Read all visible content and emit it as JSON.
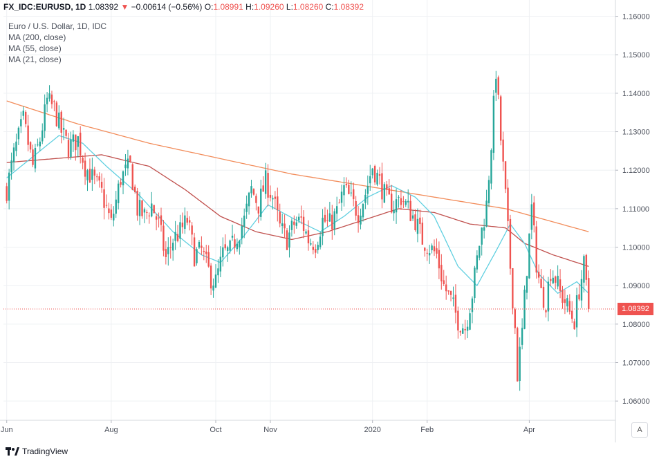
{
  "header": {
    "symbol": "FX_IDC:EURUSD, 1D",
    "last": "1.08392",
    "change_arrow": "▼",
    "change": "−0.00614 (−0.56%)",
    "open_label": "O:",
    "open": "1.08991",
    "high_label": "H:",
    "high": "1.09260",
    "low_label": "L:",
    "low": "1.08260",
    "close_label": "C:",
    "close": "1.08392"
  },
  "legend": [
    {
      "label": "Euro / U.S. Dollar, 1D, IDC"
    },
    {
      "label": "MA (200, close)"
    },
    {
      "label": "MA (55, close)"
    },
    {
      "label": "MA (21, close)"
    }
  ],
  "price_tag": "1.08392",
  "auto_button": "A",
  "branding": "TradingView",
  "colors": {
    "up": "#26a69a",
    "down": "#ef5350",
    "ma200": "#f28c5a",
    "ma55": "#c0504d",
    "ma21": "#5fcfe0",
    "grid": "#eef0f3",
    "axis_text": "#4a4f5a"
  },
  "chart_data": {
    "type": "candlestick",
    "y_axis": {
      "ticks": [
        "1.16000",
        "1.15000",
        "1.14000",
        "1.13000",
        "1.12000",
        "1.11000",
        "1.10000",
        "1.09000",
        "1.08000",
        "1.07000",
        "1.06000"
      ],
      "ylim": [
        1.055,
        1.161
      ]
    },
    "x_axis": {
      "ticks": [
        {
          "label": "Jun",
          "index": 0
        },
        {
          "label": "Aug",
          "index": 44
        },
        {
          "label": "Oct",
          "index": 88
        },
        {
          "label": "Nov",
          "index": 111
        },
        {
          "label": "2020",
          "index": 154
        },
        {
          "label": "Feb",
          "index": 177
        },
        {
          "label": "Apr",
          "index": 220
        }
      ],
      "bars_total": 246
    },
    "price_path": [
      [
        0,
        1.115
      ],
      [
        3,
        1.124
      ],
      [
        7,
        1.133
      ],
      [
        11,
        1.121
      ],
      [
        14,
        1.128
      ],
      [
        17,
        1.138
      ],
      [
        20,
        1.136
      ],
      [
        23,
        1.13
      ],
      [
        26,
        1.126
      ],
      [
        30,
        1.128
      ],
      [
        33,
        1.121
      ],
      [
        36,
        1.118
      ],
      [
        40,
        1.114
      ],
      [
        44,
        1.106
      ],
      [
        48,
        1.118
      ],
      [
        52,
        1.121
      ],
      [
        55,
        1.11
      ],
      [
        58,
        1.108
      ],
      [
        61,
        1.111
      ],
      [
        64,
        1.106
      ],
      [
        67,
        1.097
      ],
      [
        70,
        1.102
      ],
      [
        73,
        1.104
      ],
      [
        76,
        1.107
      ],
      [
        79,
        1.098
      ],
      [
        82,
        1.099
      ],
      [
        86,
        1.092
      ],
      [
        88,
        1.091
      ],
      [
        91,
        1.098
      ],
      [
        94,
        1.099
      ],
      [
        97,
        1.103
      ],
      [
        100,
        1.107
      ],
      [
        103,
        1.115
      ],
      [
        106,
        1.111
      ],
      [
        109,
        1.117
      ],
      [
        112,
        1.113
      ],
      [
        115,
        1.105
      ],
      [
        118,
        1.102
      ],
      [
        121,
        1.106
      ],
      [
        124,
        1.107
      ],
      [
        127,
        1.102
      ],
      [
        130,
        1.101
      ],
      [
        133,
        1.107
      ],
      [
        136,
        1.106
      ],
      [
        139,
        1.109
      ],
      [
        142,
        1.115
      ],
      [
        145,
        1.112
      ],
      [
        148,
        1.109
      ],
      [
        151,
        1.114
      ],
      [
        154,
        1.121
      ],
      [
        157,
        1.117
      ],
      [
        160,
        1.112
      ],
      [
        163,
        1.111
      ],
      [
        166,
        1.113
      ],
      [
        169,
        1.11
      ],
      [
        172,
        1.107
      ],
      [
        175,
        1.102
      ],
      [
        178,
        1.1
      ],
      [
        181,
        1.098
      ],
      [
        184,
        1.09
      ],
      [
        187,
        1.086
      ],
      [
        190,
        1.081
      ],
      [
        193,
        1.079
      ],
      [
        196,
        1.088
      ],
      [
        199,
        1.101
      ],
      [
        202,
        1.111
      ],
      [
        204,
        1.127
      ],
      [
        206,
        1.146
      ],
      [
        208,
        1.128
      ],
      [
        210,
        1.113
      ],
      [
        212,
        1.095
      ],
      [
        214,
        1.079
      ],
      [
        215,
        1.067
      ],
      [
        217,
        1.078
      ],
      [
        219,
        1.095
      ],
      [
        221,
        1.11
      ],
      [
        223,
        1.096
      ],
      [
        225,
        1.088
      ],
      [
        227,
        1.086
      ],
      [
        229,
        1.094
      ],
      [
        231,
        1.092
      ],
      [
        233,
        1.088
      ],
      [
        235,
        1.086
      ],
      [
        237,
        1.083
      ],
      [
        239,
        1.081
      ],
      [
        241,
        1.089
      ],
      [
        243,
        1.095
      ],
      [
        245,
        1.0839
      ]
    ],
    "ma200": [
      [
        0,
        1.138
      ],
      [
        30,
        1.132
      ],
      [
        60,
        1.127
      ],
      [
        90,
        1.123
      ],
      [
        120,
        1.119
      ],
      [
        150,
        1.116
      ],
      [
        180,
        1.113
      ],
      [
        210,
        1.11
      ],
      [
        245,
        1.104
      ]
    ],
    "ma55": [
      [
        0,
        1.122
      ],
      [
        20,
        1.123
      ],
      [
        40,
        1.124
      ],
      [
        60,
        1.121
      ],
      [
        75,
        1.115
      ],
      [
        90,
        1.108
      ],
      [
        105,
        1.104
      ],
      [
        120,
        1.102
      ],
      [
        135,
        1.104
      ],
      [
        150,
        1.107
      ],
      [
        165,
        1.11
      ],
      [
        180,
        1.109
      ],
      [
        195,
        1.106
      ],
      [
        210,
        1.105
      ],
      [
        218,
        1.101
      ],
      [
        230,
        1.098
      ],
      [
        245,
        1.095
      ]
    ],
    "ma21": [
      [
        0,
        1.118
      ],
      [
        12,
        1.124
      ],
      [
        22,
        1.129
      ],
      [
        32,
        1.127
      ],
      [
        42,
        1.121
      ],
      [
        55,
        1.114
      ],
      [
        70,
        1.104
      ],
      [
        82,
        1.098
      ],
      [
        90,
        1.096
      ],
      [
        100,
        1.103
      ],
      [
        110,
        1.111
      ],
      [
        122,
        1.107
      ],
      [
        132,
        1.104
      ],
      [
        142,
        1.108
      ],
      [
        152,
        1.113
      ],
      [
        162,
        1.116
      ],
      [
        172,
        1.113
      ],
      [
        180,
        1.108
      ],
      [
        190,
        1.095
      ],
      [
        198,
        1.09
      ],
      [
        206,
        1.099
      ],
      [
        212,
        1.106
      ],
      [
        218,
        1.101
      ],
      [
        224,
        1.093
      ],
      [
        232,
        1.088
      ],
      [
        240,
        1.091
      ],
      [
        245,
        1.088
      ]
    ]
  }
}
